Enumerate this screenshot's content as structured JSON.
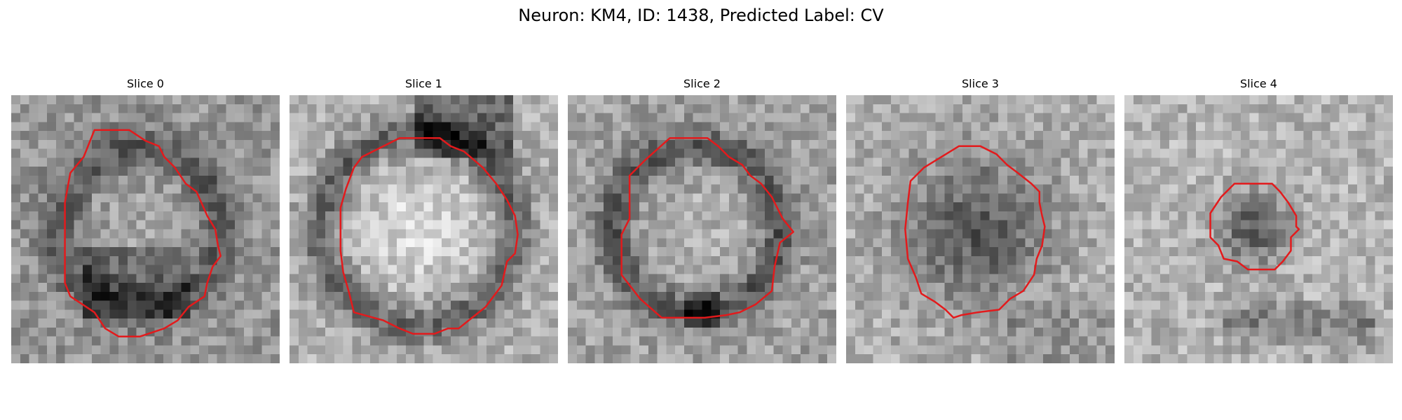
{
  "figure": {
    "title": "Neuron: KM4, ID: 1438, Predicted Label: CV"
  },
  "contour_color": "#e31a1c",
  "slices": [
    {
      "title": "Slice 0",
      "theme": "dark-ring",
      "contour": [
        [
          0.31,
          0.13
        ],
        [
          0.44,
          0.13
        ],
        [
          0.5,
          0.17
        ],
        [
          0.55,
          0.19
        ],
        [
          0.57,
          0.23
        ],
        [
          0.61,
          0.27
        ],
        [
          0.65,
          0.33
        ],
        [
          0.69,
          0.36
        ],
        [
          0.73,
          0.45
        ],
        [
          0.76,
          0.5
        ],
        [
          0.77,
          0.56
        ],
        [
          0.78,
          0.6
        ],
        [
          0.75,
          0.64
        ],
        [
          0.73,
          0.7
        ],
        [
          0.72,
          0.75
        ],
        [
          0.66,
          0.79
        ],
        [
          0.62,
          0.84
        ],
        [
          0.57,
          0.87
        ],
        [
          0.48,
          0.9
        ],
        [
          0.4,
          0.9
        ],
        [
          0.35,
          0.87
        ],
        [
          0.31,
          0.81
        ],
        [
          0.22,
          0.75
        ],
        [
          0.2,
          0.7
        ],
        [
          0.2,
          0.57
        ],
        [
          0.2,
          0.4
        ],
        [
          0.22,
          0.29
        ],
        [
          0.27,
          0.23
        ]
      ]
    },
    {
      "title": "Slice 1",
      "theme": "bright-core",
      "contour": [
        [
          0.41,
          0.16
        ],
        [
          0.56,
          0.16
        ],
        [
          0.6,
          0.19
        ],
        [
          0.65,
          0.21
        ],
        [
          0.72,
          0.27
        ],
        [
          0.77,
          0.33
        ],
        [
          0.81,
          0.39
        ],
        [
          0.84,
          0.45
        ],
        [
          0.85,
          0.52
        ],
        [
          0.84,
          0.59
        ],
        [
          0.81,
          0.62
        ],
        [
          0.79,
          0.71
        ],
        [
          0.73,
          0.79
        ],
        [
          0.68,
          0.83
        ],
        [
          0.63,
          0.87
        ],
        [
          0.59,
          0.87
        ],
        [
          0.54,
          0.89
        ],
        [
          0.46,
          0.89
        ],
        [
          0.41,
          0.87
        ],
        [
          0.35,
          0.84
        ],
        [
          0.24,
          0.81
        ],
        [
          0.22,
          0.73
        ],
        [
          0.2,
          0.66
        ],
        [
          0.19,
          0.58
        ],
        [
          0.19,
          0.42
        ],
        [
          0.21,
          0.35
        ],
        [
          0.24,
          0.27
        ],
        [
          0.27,
          0.23
        ]
      ]
    },
    {
      "title": "Slice 2",
      "theme": "ring",
      "contour": [
        [
          0.38,
          0.16
        ],
        [
          0.52,
          0.16
        ],
        [
          0.56,
          0.19
        ],
        [
          0.6,
          0.23
        ],
        [
          0.65,
          0.26
        ],
        [
          0.68,
          0.3
        ],
        [
          0.72,
          0.33
        ],
        [
          0.76,
          0.38
        ],
        [
          0.8,
          0.46
        ],
        [
          0.84,
          0.51
        ],
        [
          0.79,
          0.55
        ],
        [
          0.77,
          0.64
        ],
        [
          0.76,
          0.73
        ],
        [
          0.7,
          0.78
        ],
        [
          0.64,
          0.81
        ],
        [
          0.59,
          0.82
        ],
        [
          0.51,
          0.83
        ],
        [
          0.44,
          0.83
        ],
        [
          0.35,
          0.83
        ],
        [
          0.27,
          0.76
        ],
        [
          0.2,
          0.67
        ],
        [
          0.2,
          0.52
        ],
        [
          0.23,
          0.46
        ],
        [
          0.23,
          0.3
        ],
        [
          0.29,
          0.24
        ]
      ]
    },
    {
      "title": "Slice 3",
      "theme": "dark-core",
      "contour": [
        [
          0.42,
          0.19
        ],
        [
          0.5,
          0.19
        ],
        [
          0.56,
          0.22
        ],
        [
          0.6,
          0.26
        ],
        [
          0.64,
          0.29
        ],
        [
          0.69,
          0.33
        ],
        [
          0.72,
          0.36
        ],
        [
          0.72,
          0.4
        ],
        [
          0.73,
          0.45
        ],
        [
          0.74,
          0.49
        ],
        [
          0.73,
          0.56
        ],
        [
          0.71,
          0.61
        ],
        [
          0.7,
          0.67
        ],
        [
          0.66,
          0.73
        ],
        [
          0.61,
          0.76
        ],
        [
          0.57,
          0.8
        ],
        [
          0.49,
          0.81
        ],
        [
          0.43,
          0.82
        ],
        [
          0.4,
          0.83
        ],
        [
          0.37,
          0.8
        ],
        [
          0.33,
          0.77
        ],
        [
          0.28,
          0.74
        ],
        [
          0.26,
          0.68
        ],
        [
          0.23,
          0.61
        ],
        [
          0.22,
          0.5
        ],
        [
          0.23,
          0.4
        ],
        [
          0.24,
          0.32
        ],
        [
          0.29,
          0.27
        ]
      ]
    },
    {
      "title": "Slice 4",
      "theme": "small-dark",
      "contour": [
        [
          0.41,
          0.33
        ],
        [
          0.55,
          0.33
        ],
        [
          0.58,
          0.36
        ],
        [
          0.61,
          0.4
        ],
        [
          0.64,
          0.45
        ],
        [
          0.64,
          0.49
        ],
        [
          0.65,
          0.5
        ],
        [
          0.62,
          0.53
        ],
        [
          0.62,
          0.58
        ],
        [
          0.59,
          0.62
        ],
        [
          0.56,
          0.65
        ],
        [
          0.46,
          0.65
        ],
        [
          0.42,
          0.62
        ],
        [
          0.37,
          0.61
        ],
        [
          0.35,
          0.56
        ],
        [
          0.32,
          0.53
        ],
        [
          0.32,
          0.44
        ],
        [
          0.36,
          0.38
        ]
      ]
    }
  ]
}
